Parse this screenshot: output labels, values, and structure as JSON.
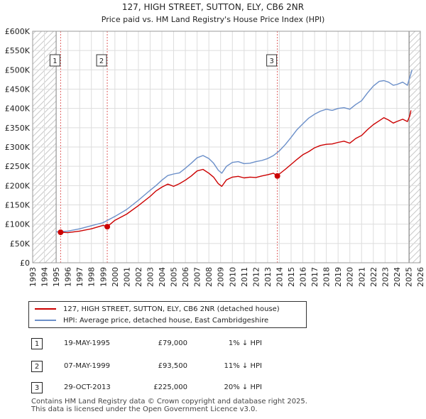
{
  "chart_data": {
    "type": "line",
    "title": "127, HIGH STREET, SUTTON, ELY, CB6 2NR",
    "subtitle": "Price paid vs. HM Land Registry's House Price Index (HPI)",
    "x_tick_labels": [
      "1993",
      "1994",
      "1995",
      "1996",
      "1997",
      "1998",
      "1999",
      "2000",
      "2001",
      "2002",
      "2003",
      "2004",
      "2005",
      "2006",
      "2007",
      "2008",
      "2009",
      "2010",
      "2011",
      "2012",
      "2013",
      "2014",
      "2015",
      "2016",
      "2017",
      "2018",
      "2019",
      "2020",
      "2021",
      "2022",
      "2023",
      "2024",
      "2025",
      "2026"
    ],
    "y_tick_labels": [
      "£0",
      "£50K",
      "£100K",
      "£150K",
      "£200K",
      "£250K",
      "£300K",
      "£350K",
      "£400K",
      "£450K",
      "£500K",
      "£550K",
      "£600K"
    ],
    "xlim": [
      1993,
      2026
    ],
    "ylim": [
      0,
      600000
    ],
    "hatched_before": 1995.0,
    "hatched_after": 2025.05,
    "series": [
      {
        "name": "127, HIGH STREET, SUTTON, ELY, CB6 2NR (detached house)",
        "color": "#cc0000",
        "x": [
          1995.38,
          1996.0,
          1997.0,
          1998.0,
          1999.0,
          1999.35,
          2000.0,
          2001.0,
          2002.0,
          2003.0,
          2003.5,
          2004.0,
          2004.5,
          2005.0,
          2005.5,
          2006.0,
          2006.5,
          2007.0,
          2007.5,
          2008.0,
          2008.4,
          2008.8,
          2009.1,
          2009.5,
          2010.0,
          2010.5,
          2011.0,
          2011.5,
          2012.0,
          2012.5,
          2013.0,
          2013.5,
          2013.83,
          2014.0,
          2014.5,
          2015.0,
          2015.5,
          2016.0,
          2016.5,
          2017.0,
          2017.5,
          2018.0,
          2018.5,
          2019.0,
          2019.5,
          2020.0,
          2020.5,
          2021.0,
          2021.5,
          2022.0,
          2022.5,
          2022.9,
          2023.3,
          2023.7,
          2024.0,
          2024.5,
          2024.9,
          2025.1,
          2025.2
        ],
        "y": [
          79000,
          78000,
          82000,
          88000,
          97000,
          93500,
          110000,
          126000,
          148000,
          172000,
          186000,
          196000,
          204000,
          198000,
          205000,
          214000,
          225000,
          238000,
          242000,
          232000,
          222000,
          205000,
          198000,
          215000,
          222000,
          224000,
          220000,
          222000,
          221000,
          225000,
          228000,
          232000,
          225000,
          230000,
          242000,
          255000,
          268000,
          280000,
          288000,
          298000,
          304000,
          307000,
          308000,
          312000,
          315000,
          310000,
          322000,
          330000,
          345000,
          358000,
          368000,
          376000,
          370000,
          362000,
          366000,
          372000,
          366000,
          380000,
          395000
        ]
      },
      {
        "name": "HPI: Average price, detached house, East Cambridgeshire",
        "color": "#6b8fc9",
        "x": [
          1995.0,
          1996.0,
          1997.0,
          1998.0,
          1999.0,
          2000.0,
          2001.0,
          2002.0,
          2003.0,
          2003.5,
          2004.0,
          2004.5,
          2005.0,
          2005.5,
          2006.0,
          2006.5,
          2007.0,
          2007.5,
          2008.0,
          2008.4,
          2008.8,
          2009.1,
          2009.5,
          2010.0,
          2010.5,
          2011.0,
          2011.5,
          2012.0,
          2012.5,
          2013.0,
          2013.5,
          2014.0,
          2014.5,
          2015.0,
          2015.5,
          2016.0,
          2016.5,
          2017.0,
          2017.5,
          2018.0,
          2018.5,
          2019.0,
          2019.5,
          2020.0,
          2020.5,
          2021.0,
          2021.5,
          2022.0,
          2022.5,
          2022.9,
          2023.3,
          2023.7,
          2024.0,
          2024.5,
          2024.9,
          2025.1,
          2025.3
        ],
        "y": [
          80000,
          82000,
          88000,
          96000,
          104000,
          120000,
          138000,
          162000,
          188000,
          200000,
          214000,
          226000,
          230000,
          233000,
          245000,
          258000,
          272000,
          278000,
          270000,
          258000,
          240000,
          232000,
          250000,
          260000,
          262000,
          257000,
          258000,
          262000,
          265000,
          270000,
          278000,
          290000,
          306000,
          325000,
          345000,
          360000,
          375000,
          385000,
          393000,
          398000,
          395000,
          400000,
          402000,
          398000,
          410000,
          420000,
          440000,
          458000,
          470000,
          472000,
          468000,
          460000,
          462000,
          468000,
          460000,
          480000,
          500000
        ]
      }
    ],
    "sales": [
      {
        "label": "1",
        "x": 1995.38,
        "y": 79000
      },
      {
        "label": "2",
        "x": 1999.35,
        "y": 93500
      },
      {
        "label": "3",
        "x": 2013.83,
        "y": 225000
      }
    ]
  },
  "legend": {
    "property_label": "127, HIGH STREET, SUTTON, ELY, CB6 2NR (detached house)",
    "hpi_label": "HPI: Average price, detached house, East Cambridgeshire"
  },
  "sales_table": [
    {
      "num": "1",
      "date": "19-MAY-1995",
      "price": "£79,000",
      "hpi": "1% ↓ HPI"
    },
    {
      "num": "2",
      "date": "07-MAY-1999",
      "price": "£93,500",
      "hpi": "11% ↓ HPI"
    },
    {
      "num": "3",
      "date": "29-OCT-2013",
      "price": "£225,000",
      "hpi": "20% ↓ HPI"
    }
  ],
  "footer": {
    "line1": "Contains HM Land Registry data © Crown copyright and database right 2025.",
    "line2": "This data is licensed under the Open Government Licence v3.0."
  }
}
